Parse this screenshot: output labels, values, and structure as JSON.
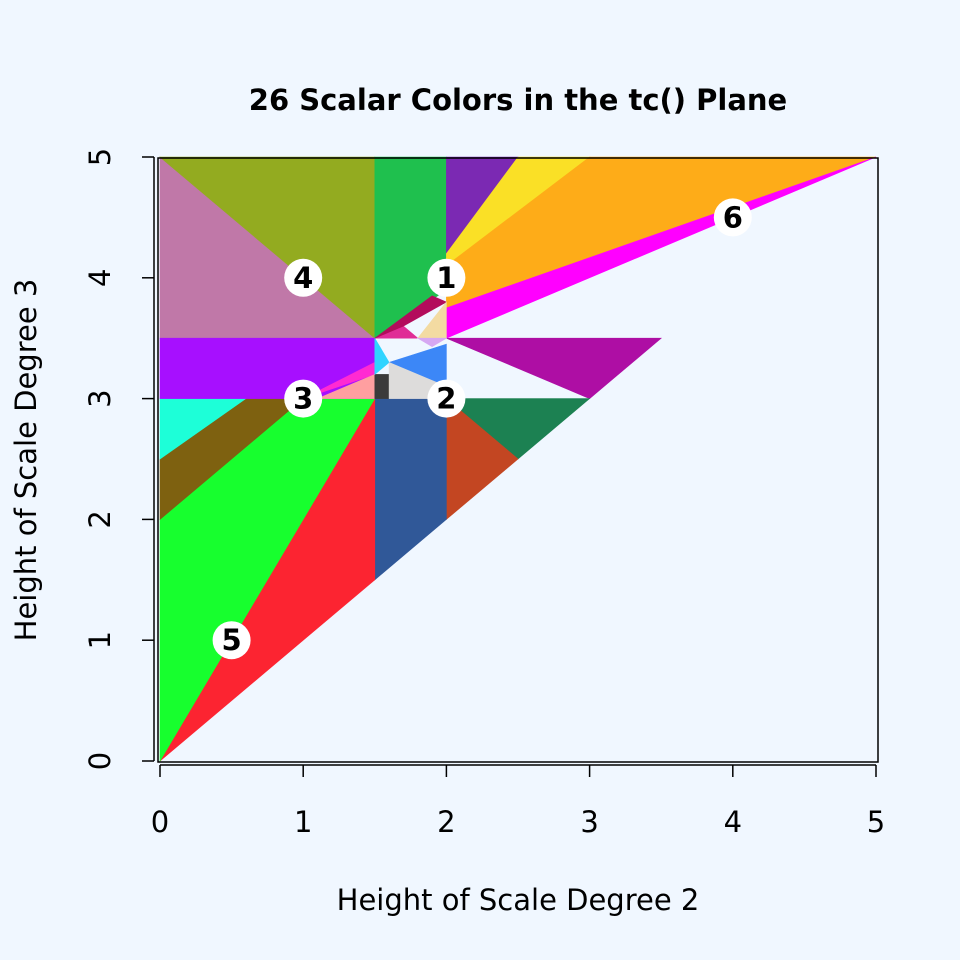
{
  "chart_data": {
    "type": "heatmap",
    "title": "26 Scalar Colors in the tc() Plane",
    "xlabel": "Height of Scale Degree 2",
    "ylabel": "Height of Scale Degree 3",
    "xlim": [
      0,
      5
    ],
    "ylim": [
      0,
      5
    ],
    "xticks": [
      "0",
      "1",
      "2",
      "3",
      "4",
      "5"
    ],
    "yticks": [
      "0",
      "1",
      "2",
      "3",
      "4",
      "5"
    ],
    "grid": false,
    "legend": "none",
    "background": "#f0f7ff",
    "regions": [
      {
        "color": "#c078a8",
        "points": [
          [
            0,
            5
          ],
          [
            1.5,
            3.5
          ],
          [
            0,
            3.5
          ]
        ]
      },
      {
        "color": "#93ab20",
        "points": [
          [
            0,
            5
          ],
          [
            1.5,
            5
          ],
          [
            1.5,
            3.5
          ]
        ]
      },
      {
        "color": "#1fc04e",
        "points": [
          [
            1.5,
            5
          ],
          [
            2,
            5
          ],
          [
            2,
            3.9
          ],
          [
            1.5,
            3.5
          ]
        ]
      },
      {
        "color": "#7b29b3",
        "points": [
          [
            2,
            5
          ],
          [
            2.5,
            5
          ],
          [
            2,
            4.2
          ]
        ]
      },
      {
        "color": "#fae026",
        "points": [
          [
            2.5,
            5
          ],
          [
            3,
            5
          ],
          [
            2,
            4.1
          ],
          [
            2,
            4.2
          ]
        ]
      },
      {
        "color": "#feac18",
        "points": [
          [
            3,
            5
          ],
          [
            5,
            5
          ],
          [
            2,
            3.75
          ],
          [
            2,
            4.1
          ]
        ]
      },
      {
        "color": "#ff00ff",
        "points": [
          [
            5,
            5
          ],
          [
            2,
            3.5
          ],
          [
            2,
            3.75
          ]
        ]
      },
      {
        "color": "#ae0ea4",
        "points": [
          [
            2,
            3.5
          ],
          [
            3.5,
            3.5
          ],
          [
            3,
            3
          ]
        ]
      },
      {
        "color": "#1c8152",
        "points": [
          [
            2,
            3
          ],
          [
            3,
            3
          ],
          [
            2.5,
            2.5
          ]
        ]
      },
      {
        "color": "#c34622",
        "points": [
          [
            2,
            3
          ],
          [
            2.5,
            2.5
          ],
          [
            2,
            2
          ]
        ]
      },
      {
        "color": "#305898",
        "points": [
          [
            1.5,
            3
          ],
          [
            2,
            3
          ],
          [
            2,
            2
          ],
          [
            1.5,
            1.5
          ]
        ]
      },
      {
        "color": "#fc2431",
        "points": [
          [
            1.5,
            3
          ],
          [
            1.5,
            1.5
          ],
          [
            0,
            0
          ]
        ]
      },
      {
        "color": "#17ff2e",
        "points": [
          [
            0,
            0
          ],
          [
            1.5,
            3
          ],
          [
            1,
            3
          ],
          [
            0,
            2
          ]
        ]
      },
      {
        "color": "#7e6110",
        "points": [
          [
            0,
            2
          ],
          [
            1,
            3
          ],
          [
            0.6,
            3
          ],
          [
            0,
            2.5
          ]
        ]
      },
      {
        "color": "#1dffd8",
        "points": [
          [
            0,
            2.5
          ],
          [
            0.6,
            3
          ],
          [
            0,
            3
          ]
        ]
      },
      {
        "color": "#a70fff",
        "points": [
          [
            0,
            3
          ],
          [
            1.5,
            3
          ],
          [
            1.5,
            3.5
          ],
          [
            0,
            3.5
          ]
        ]
      },
      {
        "color": "#ff2ad2",
        "points": [
          [
            1,
            3
          ],
          [
            1.5,
            3.3
          ],
          [
            1.5,
            3.2
          ]
        ]
      },
      {
        "color": "#ff9fa0",
        "points": [
          [
            1.1,
            3
          ],
          [
            1.5,
            3
          ],
          [
            1.5,
            3.2
          ]
        ]
      },
      {
        "color": "#3b3b3b",
        "points": [
          [
            1.5,
            3
          ],
          [
            1.6,
            3
          ],
          [
            1.6,
            3.2
          ],
          [
            1.5,
            3.2
          ]
        ]
      },
      {
        "color": "#30d4ff",
        "points": [
          [
            1.5,
            3.2
          ],
          [
            1.6,
            3.3
          ],
          [
            1.5,
            3.5
          ]
        ]
      },
      {
        "color": "#e02c96",
        "points": [
          [
            1.5,
            3.5
          ],
          [
            1.7,
            3.6
          ],
          [
            1.8,
            3.5
          ]
        ]
      },
      {
        "color": "#b30c5c",
        "points": [
          [
            1.5,
            3.5
          ],
          [
            1.9,
            3.85
          ],
          [
            2,
            3.8
          ],
          [
            1.7,
            3.6
          ]
        ]
      },
      {
        "color": "#f3dba2",
        "points": [
          [
            1.8,
            3.5
          ],
          [
            2,
            3.5
          ],
          [
            2,
            3.8
          ]
        ]
      },
      {
        "color": "#d6a8f2",
        "points": [
          [
            1.8,
            3.5
          ],
          [
            2,
            3.5
          ],
          [
            1.9,
            3.43
          ]
        ]
      },
      {
        "color": "#3c87f7",
        "points": [
          [
            1.6,
            3.3
          ],
          [
            2,
            3.45
          ],
          [
            2,
            3.1
          ]
        ]
      },
      {
        "color": "#dddcdb",
        "points": [
          [
            1.6,
            3
          ],
          [
            2,
            3
          ],
          [
            2,
            3.1
          ],
          [
            1.6,
            3.3
          ]
        ]
      }
    ],
    "annotations": [
      {
        "label": "1",
        "x": 2,
        "y": 4
      },
      {
        "label": "2",
        "x": 2,
        "y": 3
      },
      {
        "label": "3",
        "x": 1,
        "y": 3
      },
      {
        "label": "4",
        "x": 1,
        "y": 4
      },
      {
        "label": "5",
        "x": 0.5,
        "y": 1
      },
      {
        "label": "6",
        "x": 4,
        "y": 4.5
      }
    ]
  }
}
